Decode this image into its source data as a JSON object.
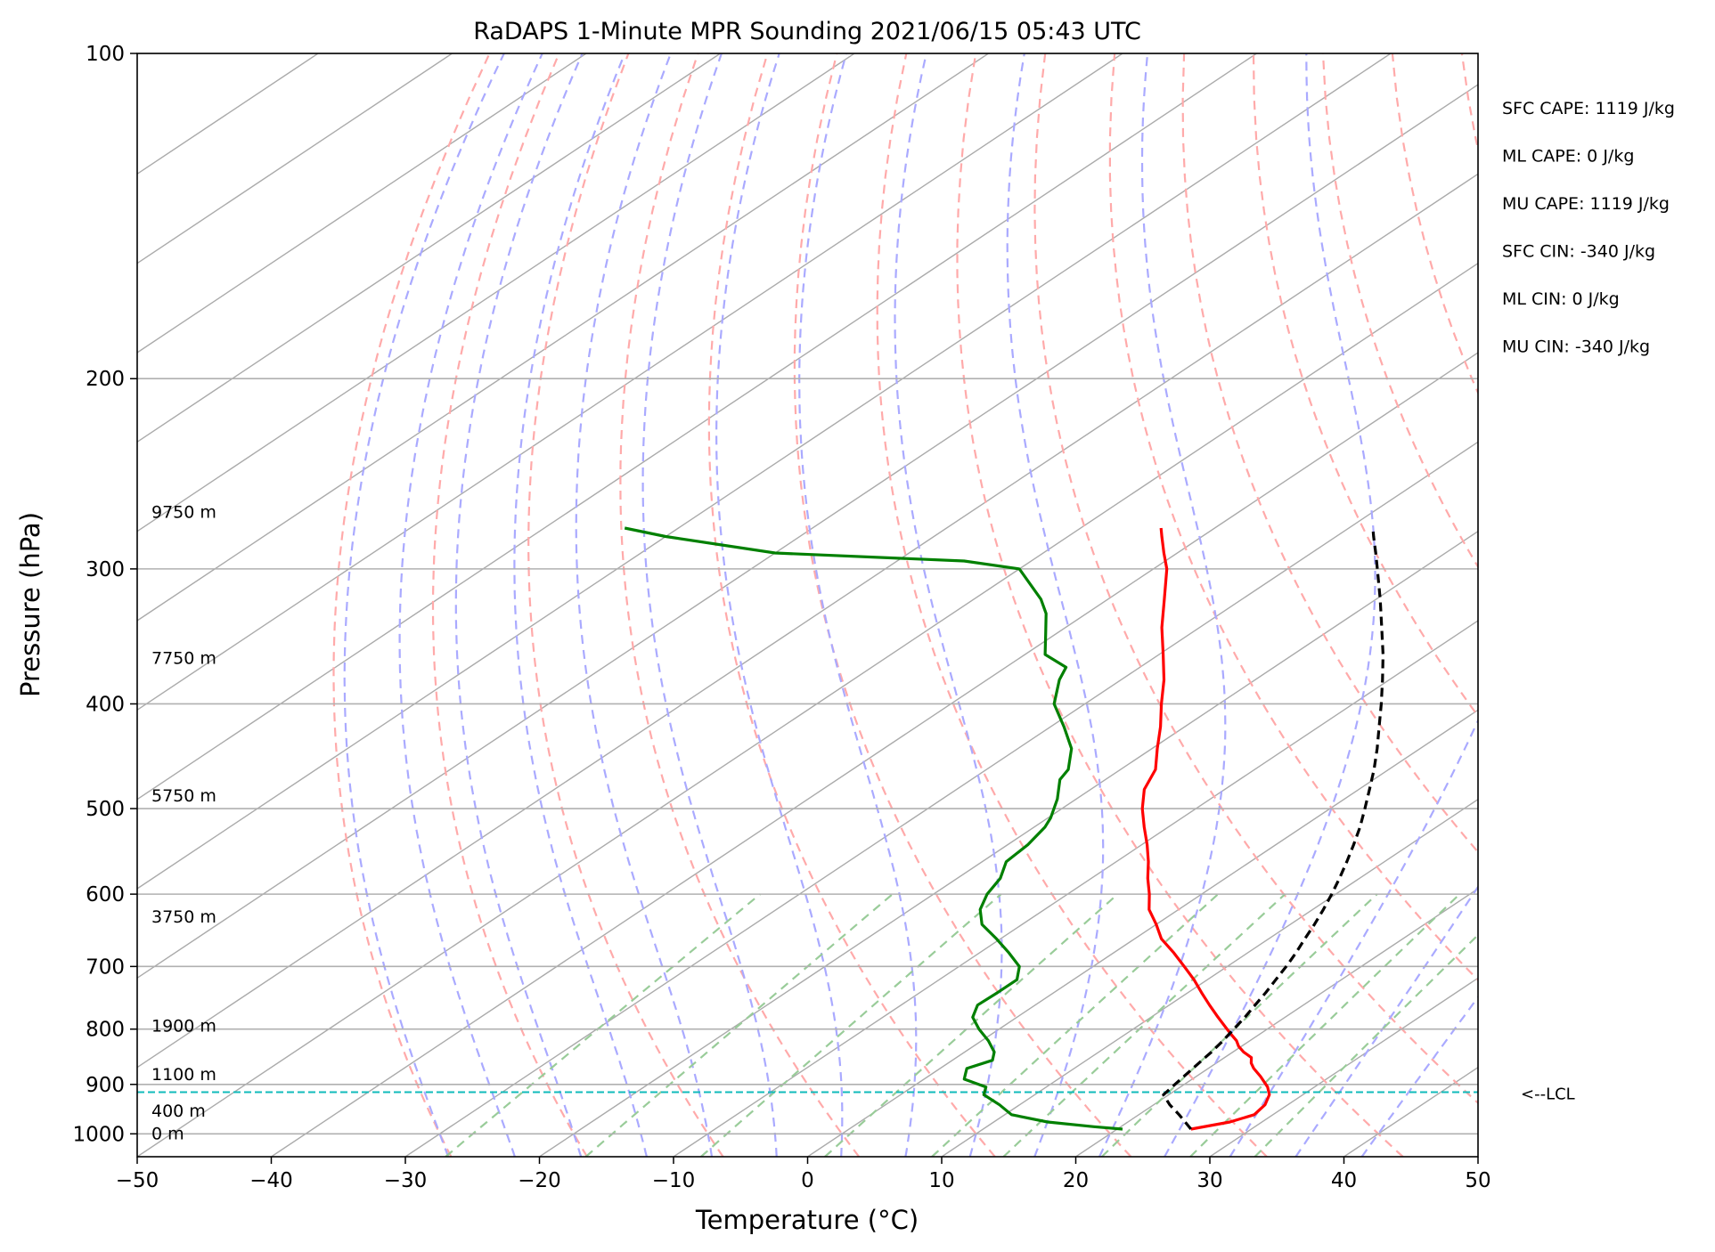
{
  "chart_data": {
    "type": "line",
    "title": "RaDAPS 1-Minute MPR Sounding 2021/06/15 05:43 UTC",
    "xlabel": "Temperature (°C)",
    "ylabel": "Pressure (hPa)",
    "xlim": [
      -50,
      50
    ],
    "ylim": [
      1050,
      100
    ],
    "y_scale": "log",
    "skew": "skew-T",
    "grid": true,
    "x_ticks": [
      -50,
      -40,
      -30,
      -20,
      -10,
      0,
      10,
      20,
      30,
      40,
      50
    ],
    "x_tick_labels": [
      "−50",
      "−40",
      "−30",
      "−20",
      "−10",
      "0",
      "10",
      "20",
      "30",
      "40",
      "50"
    ],
    "y_ticks": [
      100,
      200,
      300,
      400,
      500,
      600,
      700,
      800,
      900,
      1000
    ],
    "y_tick_labels": [
      "100",
      "200",
      "300",
      "400",
      "500",
      "600",
      "700",
      "800",
      "900",
      "1000"
    ],
    "series": [
      {
        "role": "temperature",
        "color": "#ff0000",
        "pressure": [
          990,
          975,
          960,
          940,
          920,
          905,
          885,
          870,
          860,
          850,
          840,
          830,
          820,
          810,
          800,
          780,
          760,
          740,
          720,
          700,
          680,
          660,
          640,
          620,
          600,
          580,
          560,
          540,
          520,
          500,
          480,
          460,
          440,
          420,
          400,
          380,
          360,
          340,
          320,
          300,
          290,
          280,
          275
        ],
        "values": [
          25.5,
          27.6,
          28.6,
          28.3,
          27.5,
          26.5,
          24.8,
          23.4,
          22.6,
          22.0,
          20.8,
          19.8,
          19.0,
          18.0,
          17.0,
          15.0,
          13.0,
          11.0,
          9.0,
          6.8,
          4.5,
          2.0,
          0.0,
          -2.2,
          -3.9,
          -5.8,
          -7.6,
          -9.6,
          -11.8,
          -14.0,
          -16.0,
          -17.4,
          -19.6,
          -21.8,
          -24.3,
          -26.8,
          -29.7,
          -32.8,
          -35.8,
          -39.0,
          -41.0,
          -43.0,
          -44.0
        ]
      },
      {
        "role": "dewpoint",
        "color": "#008000",
        "pressure": [
          990,
          985,
          975,
          960,
          940,
          920,
          905,
          890,
          880,
          870,
          855,
          840,
          820,
          800,
          780,
          760,
          740,
          720,
          700,
          680,
          660,
          640,
          620,
          600,
          580,
          560,
          540,
          520,
          510,
          490,
          470,
          460,
          440,
          420,
          400,
          380,
          370,
          360,
          345,
          330,
          320,
          300,
          295,
          290,
          280,
          275
        ],
        "values": [
          20.4,
          18.0,
          14.0,
          10.5,
          8.5,
          6.2,
          5.5,
          3.0,
          2.5,
          2.0,
          3.0,
          2.2,
          0.5,
          -1.5,
          -3.3,
          -4.3,
          -4.2,
          -4.2,
          -5.5,
          -7.8,
          -10.3,
          -13.0,
          -14.8,
          -16.0,
          -16.8,
          -18.2,
          -18.5,
          -19.2,
          -19.8,
          -21.4,
          -23.4,
          -23.9,
          -26.0,
          -29.0,
          -32.3,
          -34.6,
          -35.5,
          -38.5,
          -40.7,
          -43.0,
          -45.0,
          -50.0,
          -55.0,
          -70.0,
          -80.0,
          -84.0
        ]
      },
      {
        "role": "parcel",
        "color": "#000000",
        "pressure": [
          990,
          960,
          940,
          920,
          900,
          880,
          860,
          840,
          820,
          800,
          780,
          760,
          740,
          720,
          700,
          680,
          660,
          640,
          620,
          600,
          580,
          560,
          540,
          520,
          500,
          480,
          460,
          440,
          420,
          400,
          380,
          360,
          340,
          320,
          300,
          290,
          280,
          275
        ],
        "values": [
          25.5,
          23.0,
          21.2,
          19.6,
          19.3,
          19.0,
          18.7,
          18.4,
          18.0,
          17.5,
          17.0,
          16.4,
          15.8,
          15.1,
          14.4,
          13.6,
          12.7,
          11.8,
          10.8,
          9.7,
          8.5,
          7.2,
          5.8,
          4.3,
          2.6,
          0.8,
          -1.1,
          -3.2,
          -5.5,
          -7.9,
          -10.5,
          -13.3,
          -16.4,
          -19.7,
          -23.3,
          -25.2,
          -27.2,
          -28.2
        ]
      }
    ],
    "lcl_pressure": 915,
    "lcl_label": "<--LCL",
    "height_labels": [
      {
        "pressure": 1000,
        "text": "0 m"
      },
      {
        "pressure": 953,
        "text": "400 m"
      },
      {
        "pressure": 882,
        "text": "1100 m"
      },
      {
        "pressure": 795,
        "text": "1900 m"
      },
      {
        "pressure": 630,
        "text": "3750 m"
      },
      {
        "pressure": 487,
        "text": "5750 m"
      },
      {
        "pressure": 363,
        "text": "7750 m"
      },
      {
        "pressure": 266,
        "text": "9750 m"
      }
    ],
    "annotations": [
      "SFC CAPE: 1119 J/kg",
      "ML CAPE: 0 J/kg",
      "MU CAPE: 1119 J/kg",
      "SFC CIN: -340 J/kg",
      "ML CIN: 0 J/kg",
      "MU CIN: -340 J/kg"
    ],
    "background_lines": {
      "isotherm_color": "#aaaaaa",
      "dry_adiabat_color": "#ffaaaa",
      "moist_adiabat_color": "#aaaaff",
      "mixing_ratio_color": "#99cc99",
      "lcl_color": "#11bbbb"
    }
  }
}
